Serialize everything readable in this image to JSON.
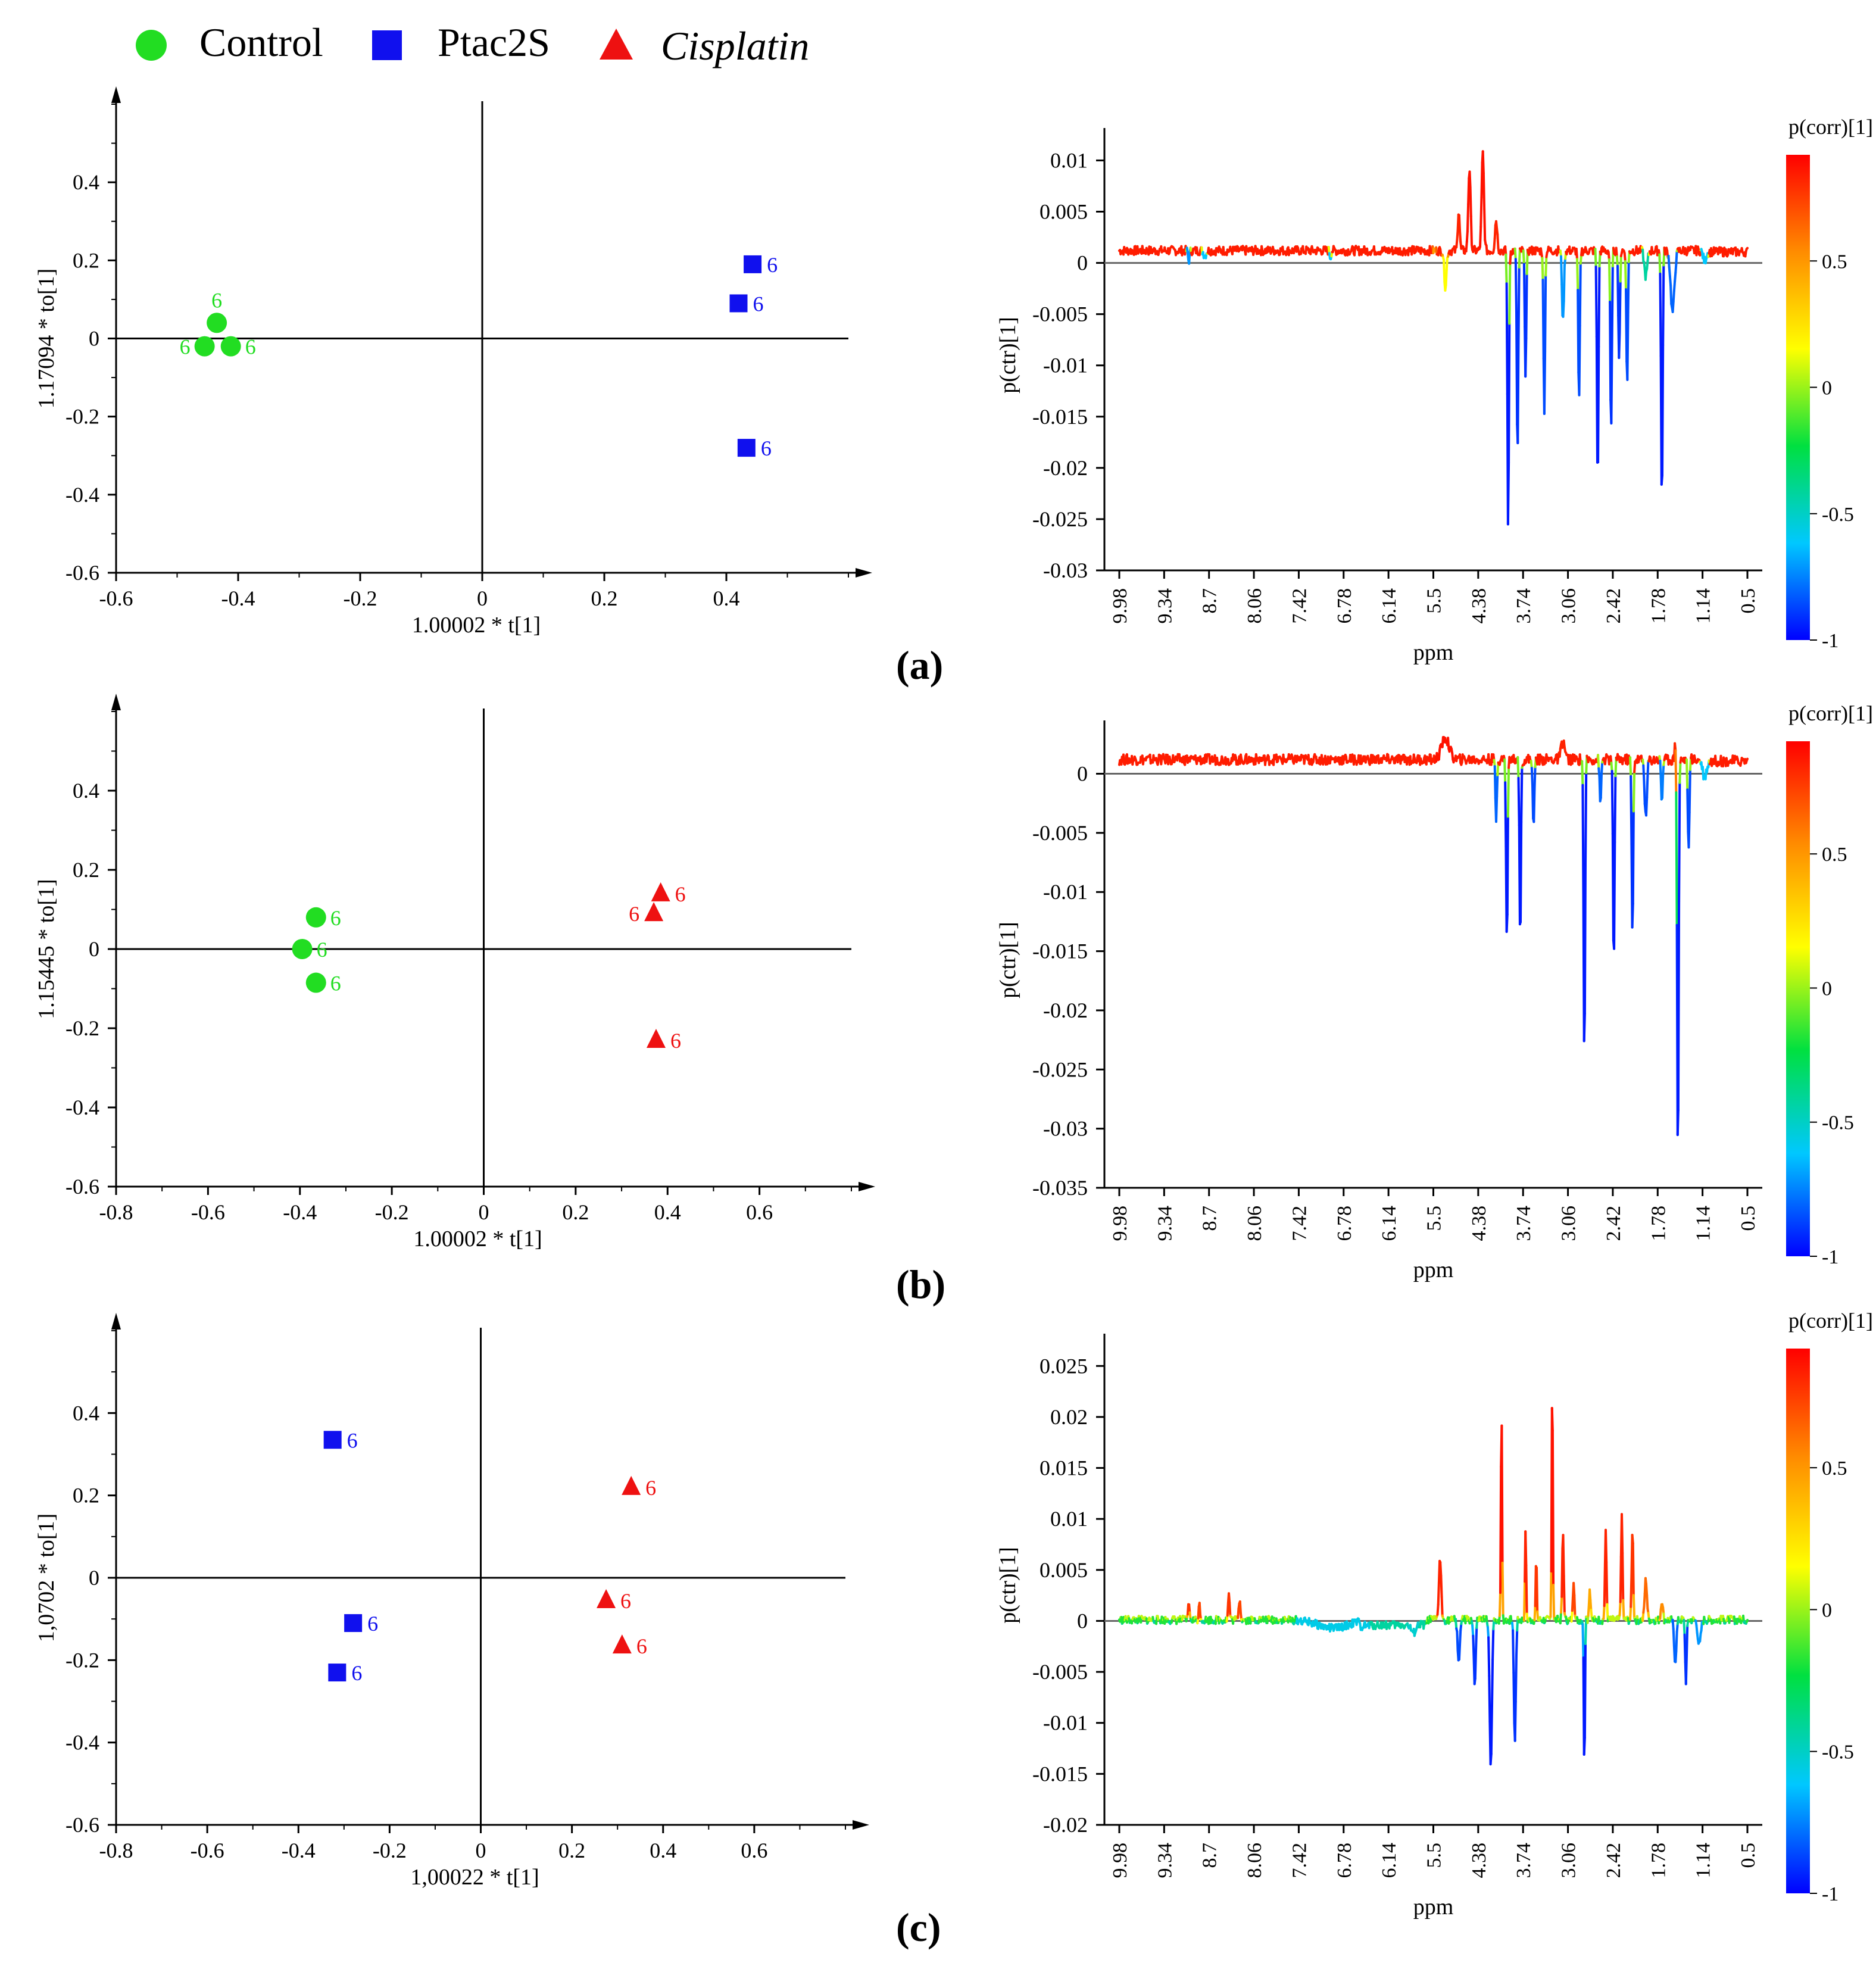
{
  "legend": {
    "items": [
      {
        "label": "Control",
        "marker": "circle",
        "color": "#22dd22",
        "italic": false
      },
      {
        "label": "Ptac2S",
        "marker": "square",
        "color": "#1010ee",
        "italic": false
      },
      {
        "label": "Cisplatin",
        "marker": "triangle",
        "color": "#ee1111",
        "italic": true
      }
    ]
  },
  "colors": {
    "control": "#22dd22",
    "ptac2s": "#1010ee",
    "cisplatin": "#ee1111",
    "axis": "#000000",
    "zero_line": "#666666"
  },
  "colorbar": {
    "title": "p(corr)[1]",
    "stops": [
      "#0000ff",
      "#00c8ff",
      "#00e040",
      "#ffff00",
      "#ff8c00",
      "#ff0000"
    ]
  },
  "panel_labels": [
    "(a)",
    "(b)",
    "(c)"
  ],
  "chart_data": [
    {
      "type": "scatter",
      "panel": "a",
      "xlabel": "1.00002 * t[1]",
      "ylabel": "1.17094 * to[1]",
      "xlim": [
        -0.6,
        0.6
      ],
      "ylim": [
        -0.6,
        0.6
      ],
      "xticks": [
        "-0.6",
        "-0.4",
        "-0.2",
        "0",
        "0.2",
        "0.4"
      ],
      "yticks": [
        "-0.6",
        "-0.4",
        "-0.2",
        "0",
        "0.2",
        "0.4"
      ],
      "series": [
        {
          "name": "Control",
          "group": "control",
          "points": [
            {
              "x": -0.455,
              "y": -0.02,
              "label": "6",
              "lpos": "left"
            },
            {
              "x": -0.435,
              "y": 0.04,
              "label": "6",
              "lpos": "top"
            },
            {
              "x": -0.412,
              "y": -0.02,
              "label": "6",
              "lpos": "right"
            }
          ]
        },
        {
          "name": "Ptac2S",
          "group": "ptac2s",
          "points": [
            {
              "x": 0.443,
              "y": 0.19,
              "label": "6",
              "lpos": "right"
            },
            {
              "x": 0.42,
              "y": 0.09,
              "label": "6",
              "lpos": "right"
            },
            {
              "x": 0.433,
              "y": -0.28,
              "label": "6",
              "lpos": "right"
            }
          ]
        }
      ]
    },
    {
      "type": "line",
      "panel": "a",
      "xlabel": "ppm",
      "ylabel": "p(ctr)[1]",
      "xticks": [
        "9.98",
        "9.34",
        "8.7",
        "8.06",
        "7.42",
        "6.78",
        "6.14",
        "5.5",
        "4.38",
        "3.74",
        "3.06",
        "2.42",
        "1.78",
        "1.14",
        "0.5"
      ],
      "ylim": [
        -0.03,
        0.012
      ],
      "yticks": [
        "0.01",
        "0.005",
        "0",
        "-0.005",
        "-0.01",
        "-0.015",
        "-0.02",
        "-0.025",
        "-0.03"
      ],
      "colorbar_ticks": [
        "0.5",
        "0",
        "-0.5",
        "-1"
      ],
      "baseline": 0.0012,
      "features": [
        [
          1.18,
          0.0,
          0.0035,
          0.55
        ],
        [
          1.22,
          -0.0035,
          0.006,
          0.2
        ],
        [
          1.31,
          0.008,
          0.006,
          0.95
        ],
        [
          1.36,
          0.0095,
          0.006,
          0.95
        ],
        [
          1.27,
          0.004,
          0.005,
          0.9
        ],
        [
          1.41,
          0.003,
          0.006,
          0.9
        ],
        [
          1.455,
          -0.027,
          0.004,
          -0.95
        ],
        [
          1.49,
          -0.02,
          0.004,
          -0.9
        ],
        [
          1.52,
          -0.012,
          0.004,
          -0.9
        ],
        [
          1.59,
          -0.0155,
          0.004,
          -0.85
        ],
        [
          1.66,
          -0.007,
          0.005,
          -0.7
        ],
        [
          1.72,
          -0.015,
          0.004,
          -0.85
        ],
        [
          1.79,
          -0.023,
          0.004,
          -0.95
        ],
        [
          1.84,
          -0.018,
          0.004,
          -0.9
        ],
        [
          1.87,
          -0.011,
          0.004,
          -0.9
        ],
        [
          1.9,
          -0.013,
          0.004,
          -0.85
        ],
        [
          1.97,
          -0.0025,
          0.008,
          -0.4
        ],
        [
          2.03,
          -0.025,
          0.004,
          -0.95
        ],
        [
          2.07,
          -0.006,
          0.01,
          -0.8
        ],
        [
          2.19,
          -0.001,
          0.008,
          -0.6
        ],
        [
          0.26,
          -0.001,
          0.004,
          -0.7
        ],
        [
          0.32,
          -0.0005,
          0.006,
          -0.6
        ],
        [
          0.79,
          -0.0007,
          0.003,
          -0.6
        ]
      ]
    },
    {
      "type": "scatter",
      "panel": "b",
      "xlabel": "1.00002 * t[1]",
      "ylabel": "1.15445 * to[1]",
      "xlim": [
        -0.8,
        0.8
      ],
      "ylim": [
        -0.6,
        0.6
      ],
      "xticks": [
        "-0.8",
        "-0.6",
        "-0.4",
        "-0.2",
        "0",
        "0.2",
        "0.4",
        "0.6"
      ],
      "yticks": [
        "-0.6",
        "-0.4",
        "-0.2",
        "0",
        "0.2",
        "0.4"
      ],
      "series": [
        {
          "name": "Control",
          "group": "control",
          "points": [
            {
              "x": -0.365,
              "y": 0.08,
              "label": "6",
              "lpos": "right"
            },
            {
              "x": -0.395,
              "y": 0.0,
              "label": "6",
              "lpos": "right"
            },
            {
              "x": -0.365,
              "y": -0.085,
              "label": "6",
              "lpos": "right"
            }
          ]
        },
        {
          "name": "Cisplatin",
          "group": "cisplatin",
          "points": [
            {
              "x": 0.385,
              "y": 0.14,
              "label": "6",
              "lpos": "right"
            },
            {
              "x": 0.37,
              "y": 0.09,
              "label": "6",
              "lpos": "left"
            },
            {
              "x": 0.375,
              "y": -0.23,
              "label": "6",
              "lpos": "right"
            }
          ]
        }
      ]
    },
    {
      "type": "line",
      "panel": "b",
      "xlabel": "ppm",
      "ylabel": "p(ctr)[1]",
      "xticks": [
        "9.98",
        "9.34",
        "8.7",
        "8.06",
        "7.42",
        "6.78",
        "6.14",
        "5.5",
        "4.38",
        "3.74",
        "3.06",
        "2.42",
        "1.78",
        "1.14",
        "0.5"
      ],
      "ylim": [
        -0.035,
        0.0035
      ],
      "yticks": [
        "0",
        "-0.005",
        "-0.01",
        "-0.015",
        "-0.02",
        "-0.025",
        "-0.03",
        "-0.035"
      ],
      "colorbar_ticks": [
        "0.5",
        "0",
        "-0.5",
        "-1"
      ],
      "baseline": 0.0012,
      "features": [
        [
          1.22,
          0.0018,
          0.02,
          0.95
        ],
        [
          1.45,
          -0.0155,
          0.004,
          -0.95
        ],
        [
          1.5,
          -0.015,
          0.004,
          -0.95
        ],
        [
          1.41,
          -0.005,
          0.004,
          -0.8
        ],
        [
          1.55,
          -0.006,
          0.004,
          -0.85
        ],
        [
          1.66,
          0.0015,
          0.01,
          0.9
        ],
        [
          1.74,
          -0.0255,
          0.004,
          -0.95
        ],
        [
          1.8,
          -0.004,
          0.004,
          -0.8
        ],
        [
          1.85,
          -0.0175,
          0.004,
          -0.95
        ],
        [
          1.92,
          -0.015,
          0.004,
          -0.9
        ],
        [
          1.97,
          -0.005,
          0.006,
          -0.85
        ],
        [
          2.09,
          -0.034,
          0.004,
          -0.95
        ],
        [
          2.03,
          -0.0035,
          0.004,
          -0.75
        ],
        [
          2.13,
          -0.008,
          0.004,
          -0.85
        ],
        [
          2.19,
          -0.0015,
          0.01,
          -0.6
        ],
        [
          2.08,
          0.0015,
          0.003,
          0.9
        ]
      ]
    },
    {
      "type": "scatter",
      "panel": "c",
      "xlabel": "1,00022 * t[1]",
      "ylabel": "1,0702 * to[1]",
      "xlim": [
        -0.8,
        0.8
      ],
      "ylim": [
        -0.6,
        0.6
      ],
      "xticks": [
        "-0.8",
        "-0.6",
        "-0.4",
        "-0.2",
        "0",
        "0.2",
        "0.4",
        "0.6"
      ],
      "yticks": [
        "-0.6",
        "-0.4",
        "-0.2",
        "0",
        "0.2",
        "0.4"
      ],
      "series": [
        {
          "name": "Ptac2S",
          "group": "ptac2s",
          "points": [
            {
              "x": -0.325,
              "y": 0.335,
              "label": "6",
              "lpos": "right"
            },
            {
              "x": -0.28,
              "y": -0.11,
              "label": "6",
              "lpos": "right"
            },
            {
              "x": -0.315,
              "y": -0.23,
              "label": "6",
              "lpos": "right"
            }
          ]
        },
        {
          "name": "Cisplatin",
          "group": "cisplatin",
          "points": [
            {
              "x": 0.33,
              "y": 0.22,
              "label": "6",
              "lpos": "right"
            },
            {
              "x": 0.275,
              "y": -0.055,
              "label": "6",
              "lpos": "right"
            },
            {
              "x": 0.31,
              "y": -0.165,
              "label": "6",
              "lpos": "right"
            }
          ]
        }
      ]
    },
    {
      "type": "line",
      "panel": "c",
      "xlabel": "ppm",
      "ylabel": "p(ctr)[1]",
      "xticks": [
        "9.98",
        "9.34",
        "8.7",
        "8.06",
        "7.42",
        "6.78",
        "6.14",
        "5.5",
        "4.38",
        "3.74",
        "3.06",
        "2.42",
        "1.78",
        "1.14",
        "0.5"
      ],
      "ylim": [
        -0.02,
        0.027
      ],
      "yticks": [
        "0.025",
        "0.02",
        "0.015",
        "0.01",
        "0.005",
        "0",
        "-0.005",
        "-0.01",
        "-0.015",
        "-0.02"
      ],
      "colorbar_ticks": [
        "0.5",
        "0",
        "-0.5",
        "-1"
      ],
      "baseline": 0.0,
      "features": [
        [
          1.2,
          0.006,
          0.006,
          0.9
        ],
        [
          1.27,
          -0.004,
          0.006,
          -0.85
        ],
        [
          1.33,
          -0.0065,
          0.005,
          -0.9
        ],
        [
          1.39,
          -0.0145,
          0.006,
          -0.95
        ],
        [
          1.43,
          0.021,
          0.003,
          0.95
        ],
        [
          1.48,
          -0.012,
          0.005,
          -0.9
        ],
        [
          1.52,
          0.009,
          0.003,
          0.9
        ],
        [
          1.56,
          0.006,
          0.003,
          0.85
        ],
        [
          1.62,
          0.024,
          0.003,
          0.95
        ],
        [
          1.66,
          0.0085,
          0.004,
          0.9
        ],
        [
          1.7,
          0.004,
          0.004,
          0.8
        ],
        [
          1.74,
          -0.015,
          0.003,
          -0.95
        ],
        [
          1.76,
          0.003,
          0.004,
          0.5
        ],
        [
          1.82,
          0.0085,
          0.004,
          0.9
        ],
        [
          1.88,
          0.01,
          0.004,
          0.9
        ],
        [
          1.92,
          0.009,
          0.004,
          0.85
        ],
        [
          1.97,
          0.004,
          0.006,
          0.7
        ],
        [
          2.03,
          0.002,
          0.005,
          0.6
        ],
        [
          2.08,
          -0.004,
          0.006,
          -0.8
        ],
        [
          2.12,
          -0.006,
          0.004,
          -0.9
        ],
        [
          2.17,
          -0.0025,
          0.008,
          -0.7
        ],
        [
          1.1,
          -0.0008,
          0.012,
          -0.5
        ],
        [
          0.41,
          0.0025,
          0.004,
          0.85
        ],
        [
          0.45,
          0.002,
          0.005,
          0.8
        ],
        [
          0.26,
          0.002,
          0.003,
          0.85
        ],
        [
          0.3,
          0.0015,
          0.004,
          0.8
        ],
        [
          0.8,
          -0.0008,
          0.08,
          -0.55
        ]
      ]
    }
  ]
}
